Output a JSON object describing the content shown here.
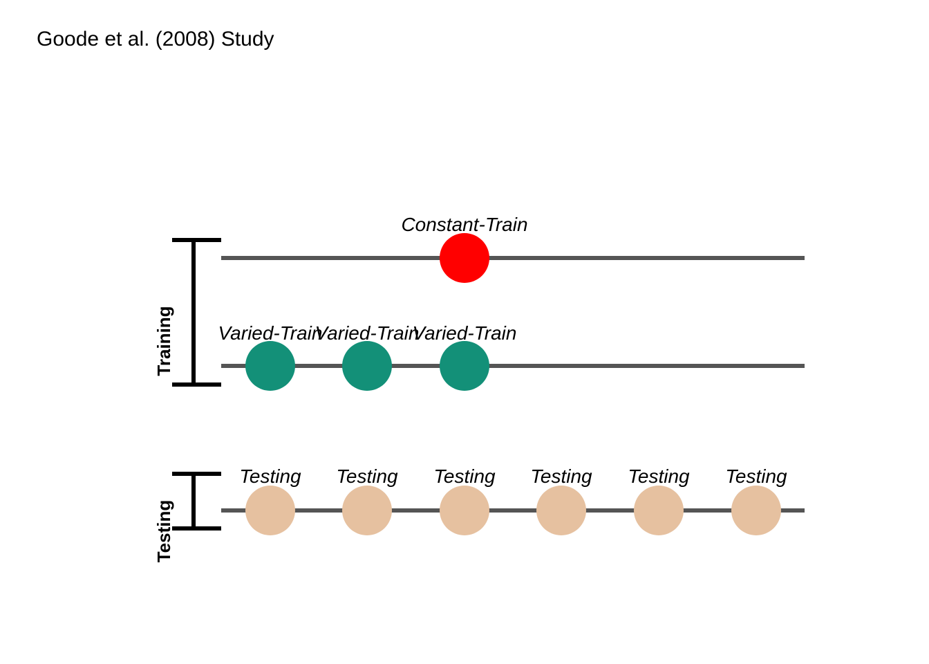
{
  "title": "Goode et al. (2008) Study",
  "groups": [
    {
      "label": "Training"
    },
    {
      "label": "Testing"
    }
  ],
  "rows": [
    {
      "group": "Training",
      "color": "#FF0000",
      "labels": [
        "Constant-Train"
      ]
    },
    {
      "group": "Training",
      "color": "#139078",
      "labels": [
        "Varied-Train",
        "Varied-Train",
        "Varied-Train"
      ]
    },
    {
      "group": "Testing",
      "color": "#E6C1A0",
      "labels": [
        "Testing",
        "Testing",
        "Testing",
        "Testing",
        "Testing",
        "Testing"
      ]
    }
  ],
  "colors": {
    "line": "#555555",
    "bracket": "#000000"
  }
}
